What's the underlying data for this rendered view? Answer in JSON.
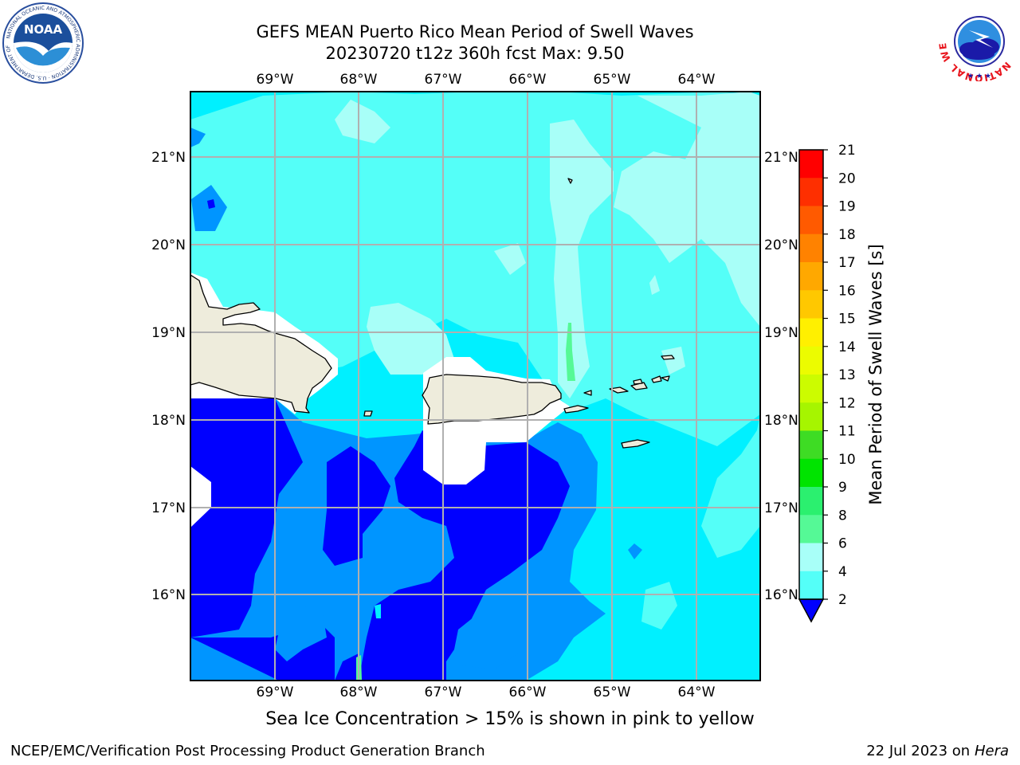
{
  "title": {
    "line1": "GEFS MEAN Puerto Rico Mean Period of Swell Waves",
    "line2": "20230720 t12z 360h fcst   Max: 9.50"
  },
  "map": {
    "lon_labels": [
      "69°W",
      "68°W",
      "67°W",
      "66°W",
      "65°W",
      "64°W"
    ],
    "lat_labels": [
      "21°N",
      "20°N",
      "19°N",
      "18°N",
      "17°N",
      "16°N"
    ],
    "land_color": "#eeecdc",
    "grid_color": "#b0b0b0"
  },
  "colorbar": {
    "label": "Mean Period of Swell Waves [s]",
    "ticks": [
      "21",
      "20",
      "19",
      "18",
      "17",
      "16",
      "15",
      "14",
      "13",
      "12",
      "11",
      "10",
      "9",
      "8",
      "6",
      "4",
      "2"
    ],
    "colors": [
      "#ff0000",
      "#fe2f00",
      "#ff5a00",
      "#ff8200",
      "#ffa800",
      "#ffc800",
      "#fff000",
      "#ecfc00",
      "#ccfc00",
      "#a6f500",
      "#3edc24",
      "#00e400",
      "#2bf06f",
      "#55f996",
      "#a8fff8",
      "#54fff8",
      "#00f0ff",
      "#0095ff",
      "#0000ff"
    ]
  },
  "logos": {
    "noaa": "NOAA",
    "noaa_ring": "NATIONAL OCEANIC AND ATMOSPHERIC ADMINISTRATION · U.S. DEPARTMENT OF COMMERCE",
    "nws_ring": "NATIONAL WEATHER SERVICE"
  },
  "footer": {
    "note": "Sea Ice Concentration > 15% is shown in pink to yellow",
    "left": "NCEP/EMC/Verification Post Processing Product Generation Branch",
    "date": "22 Jul 2023 on ",
    "machine": "Hera"
  }
}
